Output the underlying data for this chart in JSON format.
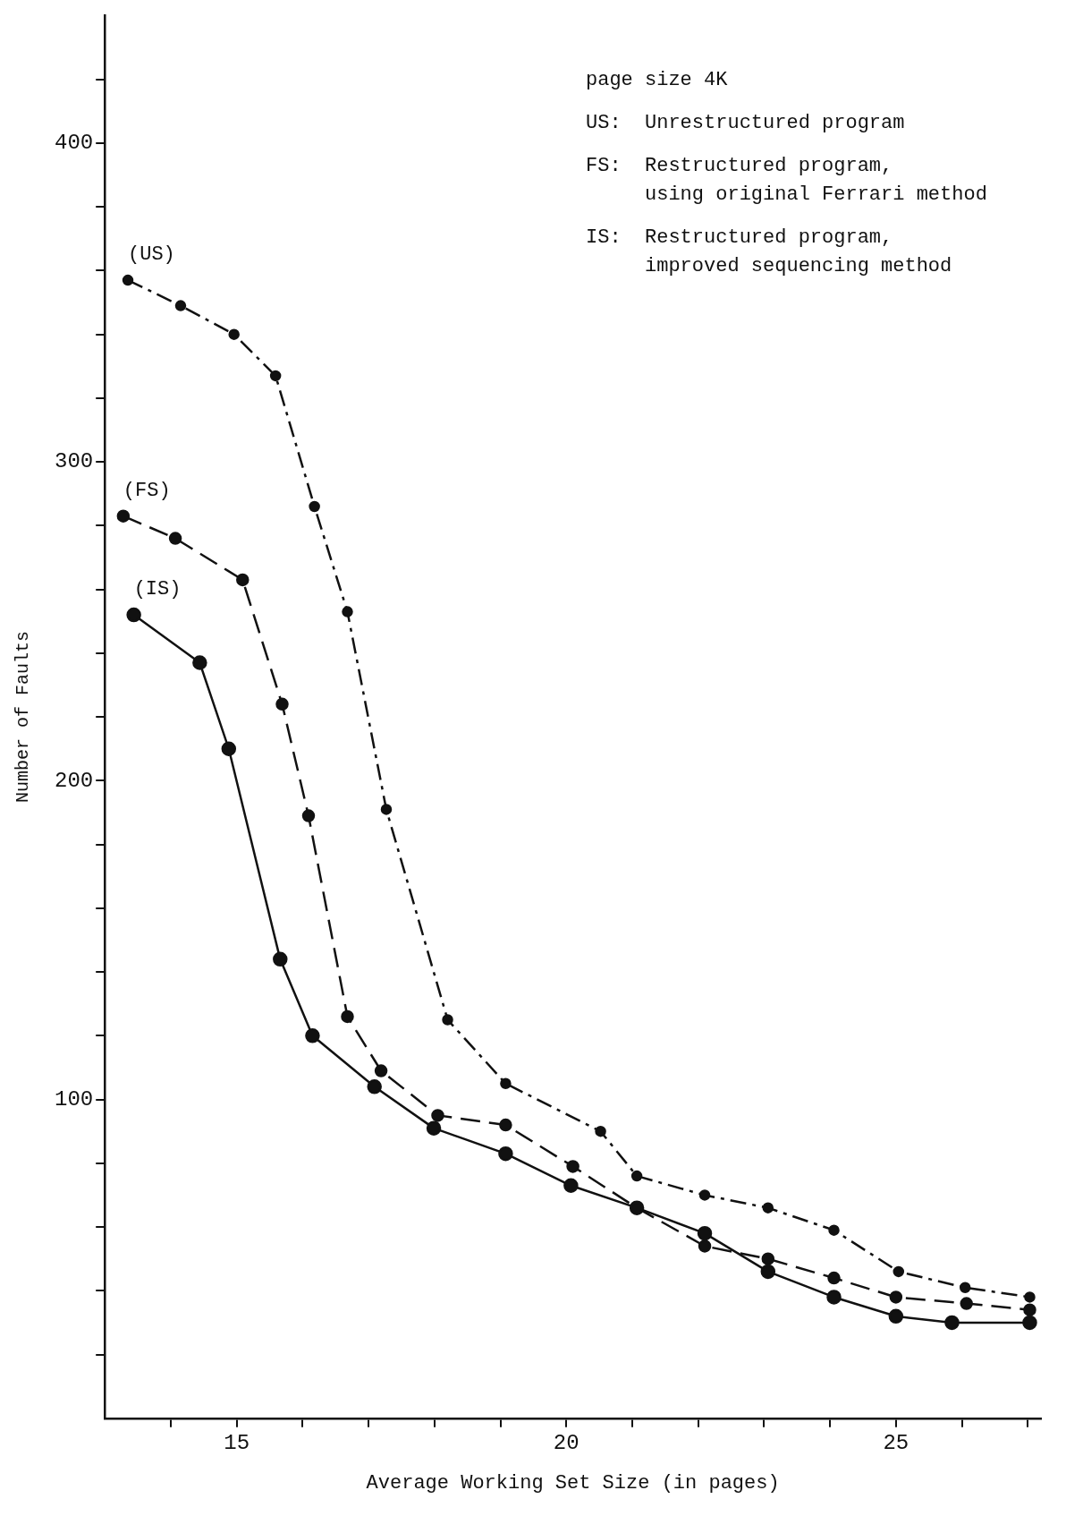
{
  "chart_data": {
    "type": "line",
    "xlabel": "Average Working Set Size (in pages)",
    "ylabel": "Number of Faults",
    "xlim": [
      13,
      27.2
    ],
    "xticks": [
      {
        "value": 14,
        "label": null
      },
      15,
      {
        "value": 16,
        "label": null
      },
      {
        "value": 17,
        "label": null
      },
      {
        "value": 18,
        "label": null
      },
      {
        "value": 19,
        "label": null
      },
      20,
      {
        "value": 21,
        "label": null
      },
      {
        "value": 22,
        "label": null
      },
      {
        "value": 23,
        "label": null
      },
      {
        "value": 24,
        "label": null
      },
      25,
      {
        "value": 26,
        "label": null
      },
      {
        "value": 27,
        "label": null
      }
    ],
    "ylim": [
      0,
      440
    ],
    "yticks": [
      {
        "value": 20,
        "label": null
      },
      {
        "value": 40,
        "label": null
      },
      {
        "value": 60,
        "label": null
      },
      {
        "value": 80,
        "label": null
      },
      100,
      {
        "value": 120,
        "label": null
      },
      {
        "value": 140,
        "label": null
      },
      {
        "value": 160,
        "label": null
      },
      {
        "value": 180,
        "label": null
      },
      200,
      {
        "value": 220,
        "label": null
      },
      {
        "value": 240,
        "label": null
      },
      {
        "value": 260,
        "label": null
      },
      {
        "value": 280,
        "label": null
      },
      300,
      {
        "value": 320,
        "label": null
      },
      {
        "value": 340,
        "label": null
      },
      {
        "value": 360,
        "label": null
      },
      {
        "value": 380,
        "label": null
      },
      400,
      {
        "value": 420,
        "label": null
      }
    ],
    "grid": false,
    "legend": false,
    "marker": "circle",
    "series": [
      {
        "name": "(US)",
        "color": "#111111",
        "line_style": "dashdot",
        "x": [
          13.35,
          14.15,
          14.96,
          15.59,
          16.18,
          16.68,
          17.27,
          18.2,
          19.08,
          20.52,
          21.07,
          22.1,
          23.06,
          24.06,
          25.04,
          26.05,
          27.03
        ],
        "values": [
          357,
          349,
          340,
          327,
          286,
          253,
          191,
          125,
          105,
          90,
          76,
          70,
          66,
          59,
          46,
          41,
          38
        ]
      },
      {
        "name": "(FS)",
        "color": "#111111",
        "line_style": "dashed",
        "x": [
          13.28,
          14.07,
          15.09,
          15.69,
          16.09,
          16.68,
          17.19,
          18.05,
          19.08,
          20.1,
          21.07,
          22.1,
          23.06,
          24.06,
          25.0,
          26.07,
          27.03
        ],
        "values": [
          283,
          276,
          263,
          224,
          189,
          126,
          109,
          95,
          92,
          79,
          66,
          54,
          50,
          44,
          38,
          36,
          34
        ]
      },
      {
        "name": "(IS)",
        "color": "#111111",
        "line_style": "solid",
        "x": [
          13.44,
          14.44,
          14.88,
          15.66,
          16.15,
          17.09,
          17.99,
          19.08,
          20.07,
          21.07,
          22.1,
          23.06,
          24.06,
          25.0,
          25.85,
          27.03
        ],
        "values": [
          252,
          237,
          210,
          144,
          120,
          104,
          91,
          83,
          73,
          66,
          58,
          46,
          38,
          32,
          30,
          30
        ]
      }
    ],
    "annotations": [
      "page size 4K",
      "US:  Unrestructured program",
      "FS:  Restructured program,\n     using original Ferrari method",
      "IS:  Restructured program,\n     improved sequencing method"
    ]
  }
}
